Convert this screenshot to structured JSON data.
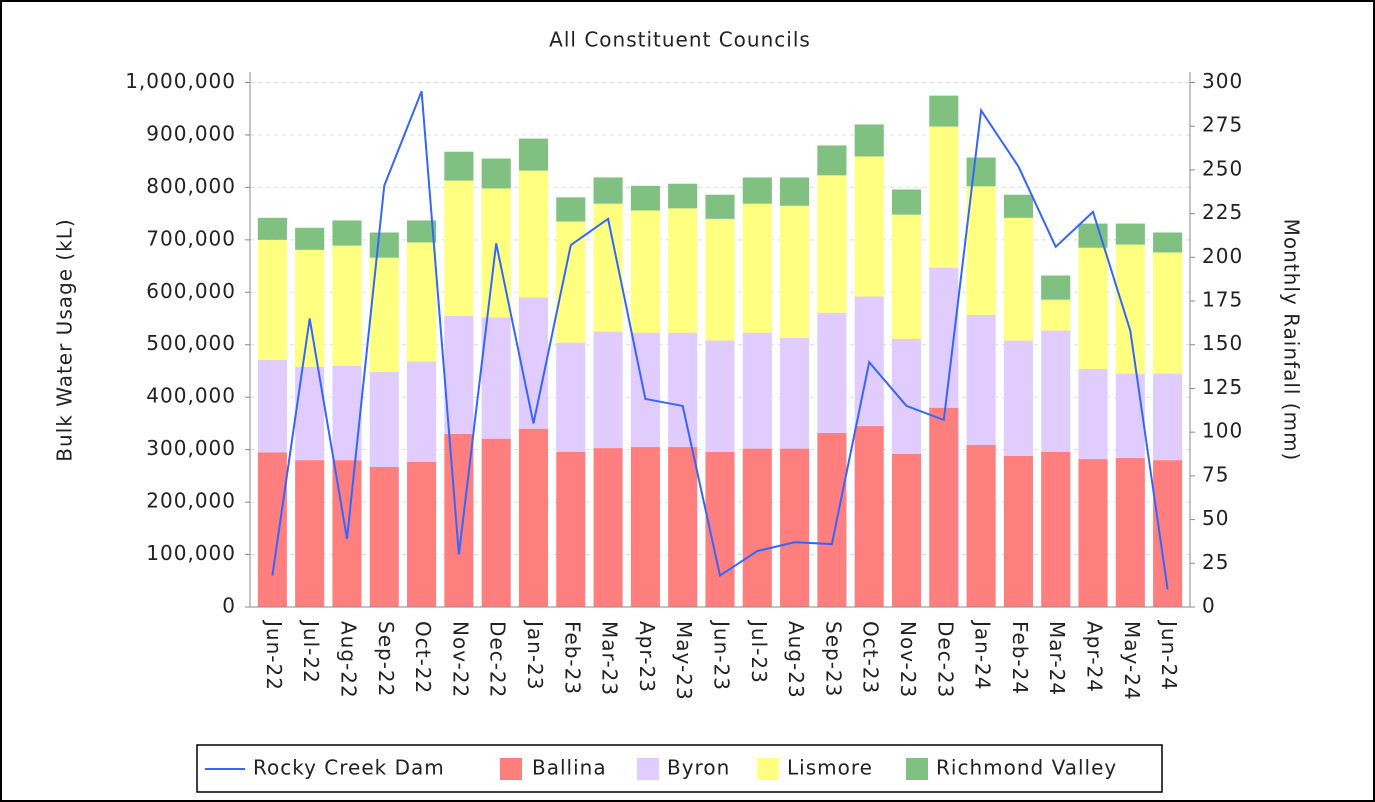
{
  "chart_data": {
    "type": "bar",
    "stacked": true,
    "title": "All Constituent Councils",
    "y_label": "Bulk Water Usage (kL)",
    "y2_label": "Monthly Rainfall (mm)",
    "categories": [
      "Jun-22",
      "Jul-22",
      "Aug-22",
      "Sep-22",
      "Oct-22",
      "Nov-22",
      "Dec-22",
      "Jan-23",
      "Feb-23",
      "Mar-23",
      "Apr-23",
      "May-23",
      "Jun-23",
      "Jul-23",
      "Aug-23",
      "Sep-23",
      "Oct-23",
      "Nov-23",
      "Dec-23",
      "Jan-24",
      "Feb-24",
      "Mar-24",
      "Apr-24",
      "May-24",
      "Jun-24"
    ],
    "series": [
      {
        "name": "Rocky Creek Dam",
        "type": "line",
        "axis": "y2",
        "color": "#3366ff",
        "values": [
          18,
          165,
          39,
          241,
          295,
          30,
          208,
          105,
          207,
          222,
          119,
          115,
          18,
          32,
          37,
          36,
          140,
          115,
          107,
          284,
          252,
          206,
          226,
          158,
          10
        ]
      },
      {
        "name": "Ballina",
        "color": "#ff7f7f",
        "values": [
          295000,
          280000,
          280000,
          267000,
          277000,
          330000,
          321000,
          340000,
          296000,
          303000,
          305000,
          305000,
          296000,
          302000,
          302000,
          332000,
          345000,
          292000,
          380000,
          309000,
          288000,
          296000,
          282000,
          284000,
          280000
        ]
      },
      {
        "name": "Byron",
        "color": "#e0ccff",
        "values": [
          176000,
          178000,
          180000,
          181000,
          191000,
          225000,
          231000,
          250000,
          208000,
          222000,
          218000,
          218000,
          212000,
          221000,
          211000,
          229000,
          247000,
          219000,
          267000,
          248000,
          220000,
          231000,
          172000,
          161000,
          165000
        ]
      },
      {
        "name": "Lismore",
        "color": "#ffff80",
        "values": [
          229000,
          223000,
          229000,
          218000,
          227000,
          258000,
          246000,
          242000,
          231000,
          244000,
          233000,
          237000,
          232000,
          246000,
          252000,
          262000,
          267000,
          237000,
          269000,
          245000,
          234000,
          59000,
          231000,
          246000,
          231000
        ]
      },
      {
        "name": "Richmond Valley",
        "color": "#80c080",
        "values": [
          42000,
          42000,
          48000,
          48000,
          42000,
          55000,
          57000,
          61000,
          46000,
          50000,
          47000,
          47000,
          46000,
          50000,
          54000,
          57000,
          61000,
          48000,
          59000,
          55000,
          44000,
          46000,
          46000,
          40000,
          38000
        ]
      }
    ],
    "ylim": [
      0,
      1020000
    ],
    "yticks": [
      0,
      {
        "value": 100000,
        "label": "100,000"
      },
      {
        "value": 200000,
        "label": "200,000"
      },
      {
        "value": 300000,
        "label": "300,000"
      },
      {
        "value": 400000,
        "label": "400,000"
      },
      {
        "value": 500000,
        "label": "500,000"
      },
      {
        "value": 600000,
        "label": "600,000"
      },
      {
        "value": 700000,
        "label": "700,000"
      },
      {
        "value": 800000,
        "label": "800,000"
      },
      {
        "value": 900000,
        "label": "900,000"
      },
      {
        "value": 1000000,
        "label": "1,000,000"
      }
    ],
    "y2lim": [
      0,
      306
    ],
    "y2ticks": [
      0,
      25,
      50,
      75,
      100,
      125,
      150,
      175,
      200,
      225,
      250,
      275,
      300
    ],
    "grid": true,
    "legend": "bottom"
  }
}
